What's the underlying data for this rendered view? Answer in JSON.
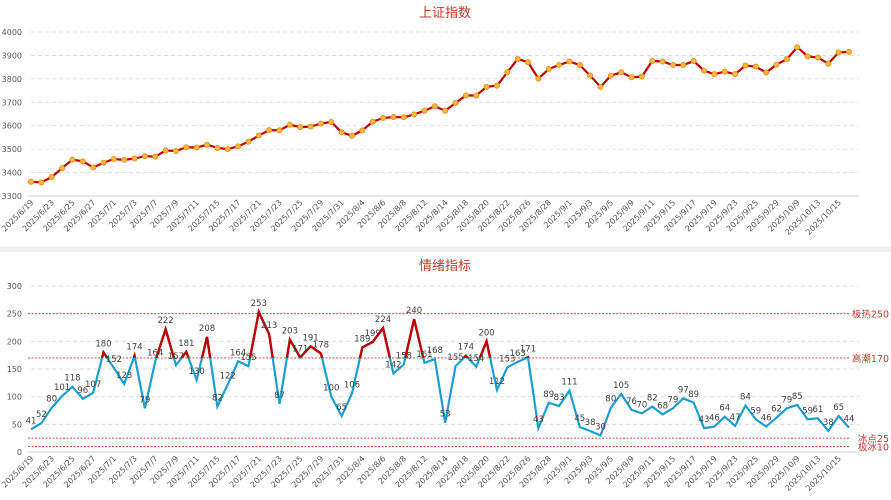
{
  "chart_data": [
    {
      "type": "line",
      "title": "上证指数",
      "ylim": [
        3300,
        4000
      ],
      "yticks": [
        3300,
        3400,
        3500,
        3600,
        3700,
        3800,
        3900,
        4000
      ],
      "grid": true,
      "x_tick_labels": [
        "2025/6/19",
        "2025/6/23",
        "2025/6/25",
        "2025/6/27",
        "2025/7/1",
        "2025/7/3",
        "2025/7/7",
        "2025/7/9",
        "2025/7/11",
        "2025/7/15",
        "2025/7/17",
        "2025/7/21",
        "2025/7/23",
        "2025/7/25",
        "2025/7/29",
        "2025/7/31",
        "2025/8/4",
        "2025/8/6",
        "2025/8/8",
        "2025/8/12",
        "2025/8/14",
        "2025/8/18",
        "2025/8/20",
        "2025/8/22",
        "2025/8/26",
        "2025/8/28",
        "2025/9/1",
        "2025/9/3",
        "2025/9/5",
        "2025/9/9",
        "2025/9/11",
        "2025/9/15",
        "2025/9/17",
        "2025/9/19",
        "2025/9/23",
        "2025/9/25",
        "2025/9/29",
        "2025/10/9",
        "2025/10/13",
        "2025/10/15"
      ],
      "values": [
        3361,
        3358,
        3381,
        3419,
        3455,
        3448,
        3422,
        3442,
        3458,
        3454,
        3460,
        3470,
        3468,
        3494,
        3492,
        3508,
        3507,
        3519,
        3505,
        3500,
        3512,
        3532,
        3558,
        3581,
        3580,
        3604,
        3594,
        3596,
        3609,
        3616,
        3572,
        3557,
        3580,
        3617,
        3633,
        3637,
        3636,
        3648,
        3664,
        3683,
        3664,
        3697,
        3729,
        3729,
        3766,
        3771,
        3828,
        3885,
        3871,
        3801,
        3842,
        3859,
        3874,
        3859,
        3814,
        3766,
        3814,
        3828,
        3807,
        3810,
        3876,
        3874,
        3859,
        3859,
        3876,
        3835,
        3820,
        3831,
        3820,
        3857,
        3852,
        3827,
        3861,
        3884,
        3935,
        3896,
        3891,
        3865,
        3913,
        3915
      ],
      "colors": {
        "line": "#c00000",
        "marker_fill": "#f6b93b",
        "marker_edge": "#e08a1e"
      }
    },
    {
      "type": "line",
      "title": "情绪指标",
      "ylim": [
        0,
        300
      ],
      "yticks": [
        0,
        50,
        100,
        150,
        200,
        250,
        300
      ],
      "grid": true,
      "x_tick_labels": [
        "2025/6/19",
        "2025/6/23",
        "2025/6/25",
        "2025/6/27",
        "2025/7/1",
        "2025/7/3",
        "2025/7/7",
        "2025/7/9",
        "2025/7/11",
        "2025/7/15",
        "2025/7/17",
        "2025/7/21",
        "2025/7/23",
        "2025/7/25",
        "2025/7/29",
        "2025/7/31",
        "2025/8/4",
        "2025/8/6",
        "2025/8/8",
        "2025/8/12",
        "2025/8/14",
        "2025/8/18",
        "2025/8/20",
        "2025/8/22",
        "2025/8/26",
        "2025/8/28",
        "2025/9/1",
        "2025/9/3",
        "2025/9/5",
        "2025/9/9",
        "2025/9/11",
        "2025/9/15",
        "2025/9/17",
        "2025/9/19",
        "2025/9/23",
        "2025/9/25",
        "2025/9/29",
        "2025/10/9",
        "2025/10/13",
        "2025/10/15"
      ],
      "values": [
        41,
        52,
        80,
        101,
        118,
        96,
        107,
        180,
        152,
        123,
        174,
        79,
        164,
        222,
        157,
        181,
        130,
        208,
        82,
        122,
        164,
        155,
        253,
        213,
        87,
        203,
        171,
        191,
        178,
        100,
        65,
        106,
        189,
        199,
        224,
        142,
        158,
        240,
        161,
        168,
        53,
        155,
        174,
        154,
        200,
        112,
        153,
        163,
        171,
        43,
        89,
        83,
        111,
        45,
        38,
        30,
        80,
        105,
        76,
        70,
        82,
        68,
        79,
        97,
        89,
        43,
        46,
        64,
        47,
        84,
        59,
        46,
        62,
        79,
        85,
        59,
        61,
        38,
        65,
        44
      ],
      "reference_lines": [
        {
          "value": 250,
          "label": "极热250"
        },
        {
          "value": 170,
          "label": "高潮170"
        },
        {
          "value": 25,
          "label": "冰点25"
        },
        {
          "value": 10,
          "label": "极冰10"
        }
      ],
      "highlight_threshold": 170,
      "colors": {
        "line_normal": "#1a9fd0",
        "line_above": "#c00000",
        "reference": "#c0392b"
      }
    }
  ]
}
